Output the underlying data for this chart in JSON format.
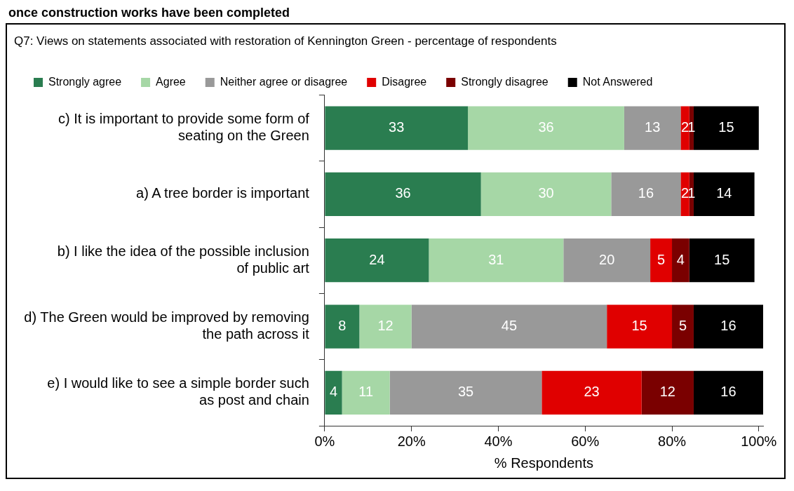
{
  "chart_data": {
    "type": "bar",
    "orientation": "horizontal",
    "stacked": true,
    "title": "once construction works have been completed",
    "subtitle": "Q7: Views on statements associated with restoration of Kennington Green - percentage of respondents",
    "xlabel": "% Respondents",
    "categories": [
      "c) It is important to provide some form of seating on the Green",
      "a) A tree border is important",
      "b) I like the idea of the possible inclusion of public art",
      "d) The Green would be improved by removing the path across it",
      "e) I would like to see a simple border such as post and chain"
    ],
    "series": [
      {
        "name": "Strongly agree",
        "color": "#2a7d50",
        "values": [
          33,
          36,
          24,
          8,
          4
        ]
      },
      {
        "name": "Agree",
        "color": "#a6d7a6",
        "values": [
          36,
          30,
          31,
          12,
          11
        ]
      },
      {
        "name": "Neither agree or disagree",
        "color": "#999999",
        "values": [
          13,
          16,
          20,
          45,
          35
        ]
      },
      {
        "name": "Disagree",
        "color": "#e00000",
        "values": [
          2,
          2,
          5,
          15,
          23
        ]
      },
      {
        "name": "Strongly disagree",
        "color": "#7a0000",
        "values": [
          1,
          1,
          4,
          5,
          12
        ]
      },
      {
        "name": "Not Answered",
        "color": "#000000",
        "values": [
          15,
          14,
          15,
          16,
          16
        ]
      }
    ],
    "xlim": [
      0,
      101
    ],
    "xticks": [
      {
        "value": 0,
        "label": "0%"
      },
      {
        "value": 20,
        "label": "20%"
      },
      {
        "value": 40,
        "label": "40%"
      },
      {
        "value": 60,
        "label": "60%"
      },
      {
        "value": 80,
        "label": "80%"
      },
      {
        "value": 100,
        "label": "100%"
      }
    ],
    "data_labels": true,
    "grid": false,
    "legend": "top"
  }
}
